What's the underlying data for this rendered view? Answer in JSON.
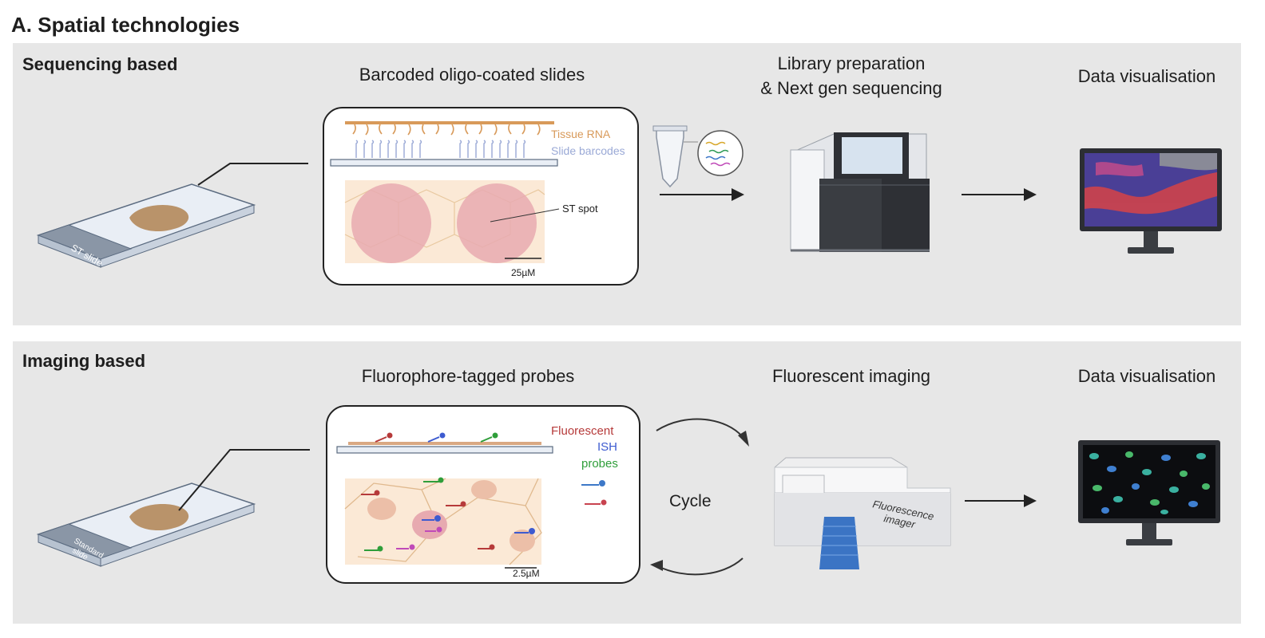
{
  "heading": "A. Spatial technologies",
  "sequencing": {
    "title": "Sequencing based",
    "slide_label": "ST slide",
    "step1_title": "Barcoded oligo-coated slides",
    "tissue_rna": "Tissue RNA",
    "slide_barcodes": "Slide barcodes",
    "st_spot": "ST spot",
    "scale": "25µM",
    "step2_line1": "Library preparation",
    "step2_line2": "& Next gen sequencing",
    "step3_title": "Data visualisation"
  },
  "imaging": {
    "title": "Imaging based",
    "slide_label_1": "Standard",
    "slide_label_2": "slide",
    "step1_title": "Fluorophore-tagged probes",
    "probes_line1": "Fluorescent",
    "probes_line2": "ISH",
    "probes_line3": "probes",
    "scale": "2.5µM",
    "cycle": "Cycle",
    "step2_title": "Fluorescent imaging",
    "imager_line1": "Fluorescence",
    "imager_line2": "imager",
    "step3_title": "Data visualisation"
  },
  "colors": {
    "panel_bg": "#e7e7e7",
    "tissue_rna": "#d89a5a",
    "slide_barcodes": "#9aa9d6",
    "fluor_red": "#b63a3a",
    "fluor_blue": "#3d5bd0",
    "fluor_green": "#2f9e3a"
  }
}
